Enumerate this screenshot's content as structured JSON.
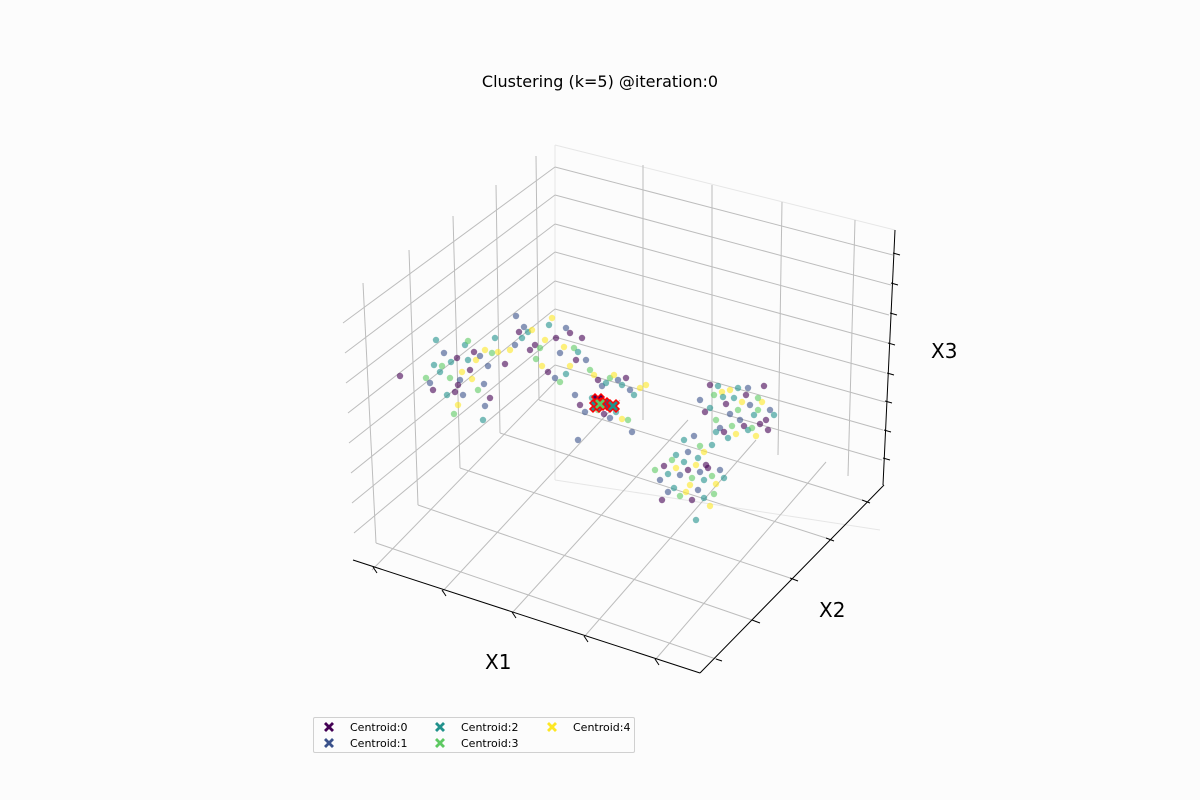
{
  "title": "Clustering (k=5) @iteration:0",
  "axes": {
    "xlabel": "X1",
    "ylabel": "X2",
    "zlabel": "X3"
  },
  "legend": {
    "items": [
      {
        "label": "Centroid:0",
        "color": "#440154"
      },
      {
        "label": "Centroid:1",
        "color": "#3b528b"
      },
      {
        "label": "Centroid:2",
        "color": "#21918c"
      },
      {
        "label": "Centroid:3",
        "color": "#5ec962"
      },
      {
        "label": "Centroid:4",
        "color": "#fde725"
      }
    ]
  },
  "chart_data": {
    "type": "scatter",
    "projection": "3d",
    "title": "Clustering (k=5) @iteration:0",
    "xlabel": "X1",
    "ylabel": "X2",
    "zlabel": "X3",
    "grid": true,
    "legend_position": "lower left (below axes)",
    "ticks": {
      "x_count": 5,
      "y_count": 5,
      "z_count": 8,
      "tick_labels_shown": false
    },
    "colors": {
      "cluster_0": "#440154",
      "cluster_1": "#3b528b",
      "cluster_2": "#21918c",
      "cluster_3": "#5ec962",
      "cluster_4": "#fde725",
      "centroid_edge": "#ff0000"
    },
    "series": [
      {
        "name": "points (random initial assignment)",
        "marker": "o",
        "alpha": 0.6,
        "note": "4 visible blobs: left blob, center blob (near centroids), right-upper blob, right-lower blob; point colors mixed across all 5 clusters",
        "points_screen": [
          [
            400,
            376,
            0
          ],
          [
            434,
            365,
            2
          ],
          [
            444,
            353,
            1
          ],
          [
            436,
            340,
            2
          ],
          [
            442,
            366,
            3
          ],
          [
            451,
            362,
            2
          ],
          [
            457,
            358,
            0
          ],
          [
            465,
            345,
            2
          ],
          [
            468,
            341,
            3
          ],
          [
            460,
            380,
            1
          ],
          [
            455,
            392,
            0
          ],
          [
            447,
            395,
            2
          ],
          [
            463,
            395,
            1
          ],
          [
            472,
            379,
            4
          ],
          [
            478,
            390,
            3
          ],
          [
            484,
            384,
            1
          ],
          [
            470,
            370,
            0
          ],
          [
            476,
            360,
            4
          ],
          [
            488,
            366,
            1
          ],
          [
            492,
            353,
            3
          ],
          [
            495,
            338,
            2
          ],
          [
            498,
            352,
            4
          ],
          [
            505,
            364,
            0
          ],
          [
            510,
            350,
            4
          ],
          [
            515,
            345,
            1
          ],
          [
            519,
            332,
            0
          ],
          [
            524,
            327,
            1
          ],
          [
            528,
            332,
            2
          ],
          [
            532,
            330,
            4
          ],
          [
            535,
            345,
            0
          ],
          [
            540,
            348,
            3
          ],
          [
            545,
            340,
            4
          ],
          [
            549,
            325,
            2
          ],
          [
            552,
            318,
            4
          ],
          [
            556,
            338,
            0
          ],
          [
            560,
            353,
            1
          ],
          [
            564,
            347,
            4
          ],
          [
            566,
            328,
            1
          ],
          [
            570,
            333,
            0
          ],
          [
            574,
            348,
            3
          ],
          [
            578,
            352,
            2
          ],
          [
            582,
            338,
            0
          ],
          [
            586,
            360,
            1
          ],
          [
            590,
            370,
            3
          ],
          [
            594,
            375,
            4
          ],
          [
            598,
            380,
            0
          ],
          [
            602,
            386,
            1
          ],
          [
            606,
            383,
            2
          ],
          [
            610,
            378,
            3
          ],
          [
            614,
            375,
            4
          ],
          [
            618,
            380,
            1
          ],
          [
            622,
            385,
            2
          ],
          [
            626,
            378,
            0
          ],
          [
            630,
            390,
            1
          ],
          [
            634,
            395,
            2
          ],
          [
            640,
            388,
            4
          ],
          [
            646,
            385,
            4
          ],
          [
            575,
            395,
            1
          ],
          [
            580,
            405,
            0
          ],
          [
            585,
            412,
            1
          ],
          [
            592,
            398,
            2
          ],
          [
            598,
            410,
            3
          ],
          [
            604,
            414,
            0
          ],
          [
            610,
            418,
            1
          ],
          [
            616,
            412,
            2
          ],
          [
            622,
            419,
            4
          ],
          [
            628,
            420,
            3
          ],
          [
            632,
            432,
            1
          ],
          [
            578,
            440,
            1
          ],
          [
            440,
            372,
            2
          ],
          [
            450,
            378,
            3
          ],
          [
            458,
            385,
            0
          ],
          [
            462,
            372,
            4
          ],
          [
            454,
            414,
            3
          ],
          [
            458,
            405,
            4
          ],
          [
            483,
            420,
            2
          ],
          [
            485,
            406,
            1
          ],
          [
            490,
            398,
            0
          ],
          [
            468,
            360,
            2
          ],
          [
            474,
            352,
            0
          ],
          [
            480,
            356,
            1
          ],
          [
            485,
            350,
            4
          ],
          [
            430,
            383,
            1
          ],
          [
            426,
            378,
            3
          ],
          [
            433,
            390,
            0
          ],
          [
            516,
            316,
            1
          ],
          [
            522,
            338,
            2
          ],
          [
            530,
            350,
            0
          ],
          [
            536,
            359,
            3
          ],
          [
            542,
            366,
            4
          ],
          [
            548,
            372,
            0
          ],
          [
            555,
            378,
            1
          ],
          [
            560,
            382,
            3
          ],
          [
            566,
            374,
            2
          ],
          [
            570,
            366,
            4
          ],
          [
            576,
            360,
            0
          ],
          [
            700,
            400,
            1
          ],
          [
            705,
            412,
            0
          ],
          [
            710,
            408,
            2
          ],
          [
            714,
            395,
            3
          ],
          [
            718,
            386,
            2
          ],
          [
            722,
            392,
            4
          ],
          [
            726,
            404,
            0
          ],
          [
            730,
            414,
            1
          ],
          [
            734,
            398,
            2
          ],
          [
            738,
            410,
            3
          ],
          [
            742,
            402,
            4
          ],
          [
            746,
            395,
            0
          ],
          [
            750,
            405,
            1
          ],
          [
            754,
            415,
            2
          ],
          [
            758,
            410,
            3
          ],
          [
            762,
            402,
            4
          ],
          [
            766,
            420,
            0
          ],
          [
            770,
            410,
            1
          ],
          [
            774,
            415,
            2
          ],
          [
            716,
            420,
            3
          ],
          [
            720,
            428,
            1
          ],
          [
            724,
            432,
            0
          ],
          [
            728,
            438,
            2
          ],
          [
            732,
            426,
            3
          ],
          [
            736,
            434,
            4
          ],
          [
            740,
            420,
            1
          ],
          [
            744,
            426,
            0
          ],
          [
            748,
            430,
            2
          ],
          [
            752,
            428,
            3
          ],
          [
            756,
            436,
            4
          ],
          [
            760,
            424,
            0
          ],
          [
            764,
            386,
            0
          ],
          [
            716,
            432,
            2
          ],
          [
            730,
            390,
            4
          ],
          [
            710,
            385,
            0
          ],
          [
            748,
            388,
            1
          ],
          [
            738,
            388,
            2
          ],
          [
            758,
            398,
            3
          ],
          [
            768,
            430,
            0
          ],
          [
            723,
            397,
            2
          ],
          [
            655,
            470,
            3
          ],
          [
            660,
            480,
            1
          ],
          [
            664,
            466,
            0
          ],
          [
            668,
            474,
            2
          ],
          [
            672,
            460,
            3
          ],
          [
            676,
            468,
            4
          ],
          [
            680,
            475,
            1
          ],
          [
            684,
            462,
            2
          ],
          [
            688,
            470,
            0
          ],
          [
            692,
            478,
            3
          ],
          [
            696,
            465,
            4
          ],
          [
            700,
            472,
            1
          ],
          [
            704,
            480,
            2
          ],
          [
            708,
            468,
            0
          ],
          [
            712,
            476,
            3
          ],
          [
            716,
            484,
            4
          ],
          [
            720,
            470,
            1
          ],
          [
            724,
            478,
            2
          ],
          [
            662,
            500,
            0
          ],
          [
            668,
            492,
            1
          ],
          [
            674,
            488,
            2
          ],
          [
            680,
            496,
            3
          ],
          [
            686,
            492,
            4
          ],
          [
            692,
            500,
            0
          ],
          [
            698,
            490,
            1
          ],
          [
            704,
            498,
            2
          ],
          [
            710,
            506,
            4
          ],
          [
            714,
            494,
            3
          ],
          [
            696,
            520,
            2
          ],
          [
            676,
            455,
            2
          ],
          [
            688,
            452,
            1
          ],
          [
            700,
            446,
            3
          ],
          [
            704,
            452,
            4
          ],
          [
            712,
            445,
            2
          ],
          [
            698,
            458,
            2
          ],
          [
            690,
            485,
            4
          ],
          [
            706,
            465,
            0
          ],
          [
            684,
            440,
            2
          ],
          [
            694,
            436,
            1
          ]
        ]
      },
      {
        "name": "centroids",
        "marker": "X",
        "size": "large",
        "edgecolor": "#ff0000",
        "centroids_screen": [
          [
            598,
            400,
            0
          ],
          [
            604,
            404,
            1
          ],
          [
            596,
            406,
            2
          ],
          [
            600,
            404,
            3
          ],
          [
            613,
            406,
            2
          ]
        ]
      }
    ]
  }
}
